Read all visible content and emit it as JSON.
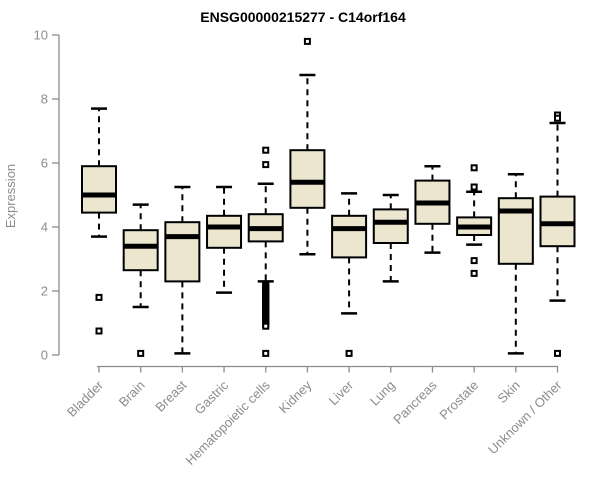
{
  "colors": {
    "background": "#FFFFFF",
    "box_fill": "#ECE6CF",
    "box_stroke": "#000000",
    "median": "#000000",
    "whisker": "#000000",
    "outlier_stroke": "#000000",
    "outlier_fill": "#FFFFFF",
    "axis": "#8C8C8C",
    "tick_label": "#8C8C8C",
    "title": "#000000"
  },
  "chart_data": {
    "type": "boxplot",
    "title": "ENSG00000215277 - C14orf164",
    "xlabel": "",
    "ylabel": "Expression",
    "ylim": [
      0,
      10
    ],
    "yticks": [
      0,
      2,
      4,
      6,
      8,
      10
    ],
    "grid": false,
    "legend": "none",
    "categories": [
      "Bladder",
      "Brain",
      "Breast",
      "Gastric",
      "Hematopoietic cells",
      "Kidney",
      "Liver",
      "Lung",
      "Pancreas",
      "Prostate",
      "Skin",
      "Unknown / Other"
    ],
    "series": [
      {
        "name": "Bladder",
        "whisker_low": 3.7,
        "q1": 4.45,
        "median": 5.0,
        "q3": 5.9,
        "whisker_high": 7.7,
        "outliers": [
          1.8,
          0.75
        ]
      },
      {
        "name": "Brain",
        "whisker_low": 1.5,
        "q1": 2.65,
        "median": 3.4,
        "q3": 3.9,
        "whisker_high": 4.7,
        "outliers": [
          0.05
        ]
      },
      {
        "name": "Breast",
        "whisker_low": 0.05,
        "q1": 2.3,
        "median": 3.7,
        "q3": 4.15,
        "whisker_high": 5.25,
        "outliers": []
      },
      {
        "name": "Gastric",
        "whisker_low": 1.95,
        "q1": 3.35,
        "median": 4.0,
        "q3": 4.35,
        "whisker_high": 5.25,
        "outliers": []
      },
      {
        "name": "Hematopoietic cells",
        "whisker_low": 2.3,
        "q1": 3.55,
        "median": 3.95,
        "q3": 4.4,
        "whisker_high": 5.35,
        "outliers": [
          6.4,
          5.95,
          2.2,
          2.15,
          2.1,
          2.05,
          2.0,
          1.95,
          1.9,
          1.85,
          1.8,
          1.75,
          1.7,
          1.65,
          1.6,
          1.55,
          1.5,
          1.45,
          1.4,
          1.35,
          1.3,
          1.25,
          1.2,
          1.15,
          1.1,
          1.05,
          1.0,
          0.95,
          0.9,
          0.05
        ]
      },
      {
        "name": "Kidney",
        "whisker_low": 3.15,
        "q1": 4.6,
        "median": 5.4,
        "q3": 6.4,
        "whisker_high": 8.75,
        "outliers": [
          9.8
        ]
      },
      {
        "name": "Liver",
        "whisker_low": 1.3,
        "q1": 3.05,
        "median": 3.95,
        "q3": 4.35,
        "whisker_high": 5.05,
        "outliers": [
          0.05
        ]
      },
      {
        "name": "Lung",
        "whisker_low": 2.3,
        "q1": 3.5,
        "median": 4.15,
        "q3": 4.55,
        "whisker_high": 5.0,
        "outliers": []
      },
      {
        "name": "Pancreas",
        "whisker_low": 3.2,
        "q1": 4.1,
        "median": 4.75,
        "q3": 5.45,
        "whisker_high": 5.9,
        "outliers": []
      },
      {
        "name": "Prostate",
        "whisker_low": 3.45,
        "q1": 3.75,
        "median": 4.0,
        "q3": 4.3,
        "whisker_high": 5.1,
        "outliers": [
          5.85,
          5.25,
          2.95,
          2.55
        ]
      },
      {
        "name": "Skin",
        "whisker_low": 0.05,
        "q1": 2.85,
        "median": 4.5,
        "q3": 4.9,
        "whisker_high": 5.65,
        "outliers": []
      },
      {
        "name": "Unknown / Other",
        "whisker_low": 1.7,
        "q1": 3.4,
        "median": 4.1,
        "q3": 4.95,
        "whisker_high": 7.25,
        "outliers": [
          7.5,
          7.4,
          0.05
        ]
      }
    ]
  }
}
